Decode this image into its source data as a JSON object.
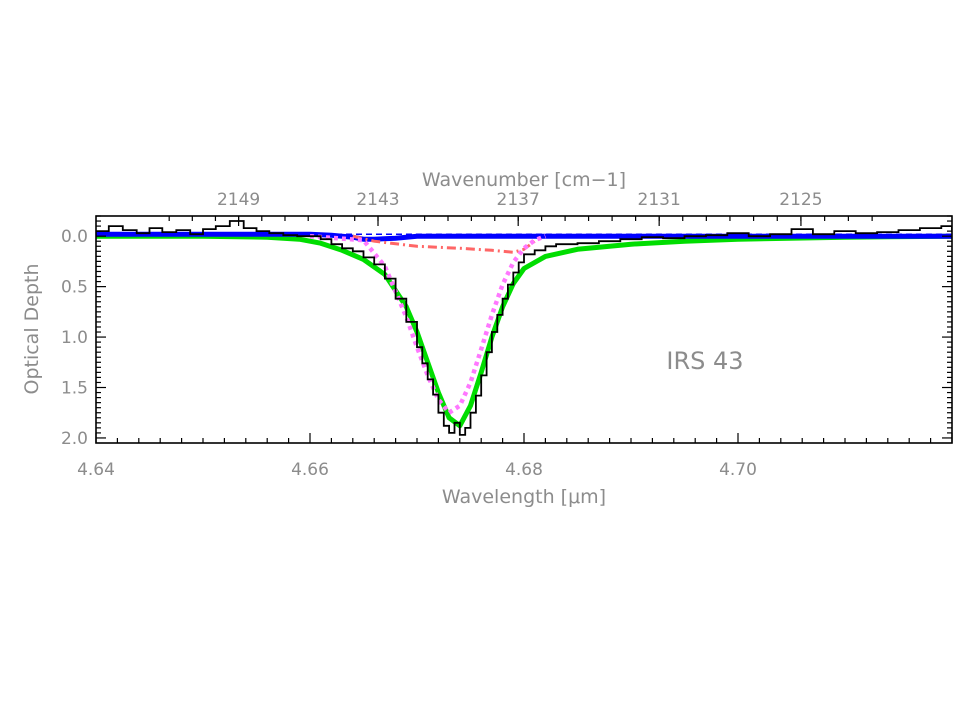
{
  "chart_data": {
    "type": "line",
    "annotation": "IRS 43",
    "xlabel": "Wavelength [μm]",
    "ylabel": "Optical Depth",
    "top_xlabel": "Wavenumber [cm−1]",
    "xlim": [
      4.64,
      4.72
    ],
    "ylim": [
      2.05,
      -0.2
    ],
    "y_inverted": true,
    "grid": false,
    "x_ticks": [
      "4.64",
      "4.66",
      "4.68",
      "4.70"
    ],
    "y_ticks": [
      "0.0",
      "0.5",
      "1.0",
      "1.5",
      "2.0"
    ],
    "top_ticks": [
      "2149",
      "2143",
      "2137",
      "2131",
      "2125"
    ],
    "top_tick_values": [
      2149,
      2143,
      2137,
      2131,
      2125
    ],
    "colors": {
      "observed": "#000000",
      "total_fit": "#00dd00",
      "component_a": "#ff77ff",
      "component_b": "#ff6666",
      "component_c": "#0000ff"
    },
    "series": [
      {
        "key": "observed",
        "style": "step",
        "x": [
          4.64,
          4.6412,
          4.6425,
          4.6438,
          4.645,
          4.6462,
          4.6475,
          4.6488,
          4.65,
          4.6512,
          4.6525,
          4.6538,
          4.655,
          4.6562,
          4.6575,
          4.6588,
          4.66,
          4.661,
          4.662,
          4.663,
          4.664,
          4.665,
          4.666,
          4.667,
          4.668,
          4.669,
          4.67,
          4.6705,
          4.671,
          4.6715,
          4.672,
          4.6725,
          4.673,
          4.6735,
          4.674,
          4.6745,
          4.675,
          4.6755,
          4.676,
          4.6765,
          4.677,
          4.6775,
          4.678,
          4.6785,
          4.679,
          4.6795,
          4.68,
          4.681,
          4.682,
          4.683,
          4.685,
          4.687,
          4.689,
          4.691,
          4.693,
          4.695,
          4.697,
          4.699,
          4.701,
          4.703,
          4.705,
          4.707,
          4.709,
          4.711,
          4.713,
          4.715,
          4.717,
          4.719,
          4.72
        ],
        "y": [
          -0.05,
          -0.1,
          -0.06,
          -0.03,
          -0.08,
          -0.04,
          -0.06,
          -0.02,
          -0.07,
          -0.1,
          -0.15,
          -0.08,
          -0.05,
          -0.03,
          -0.01,
          0.0,
          0.0,
          0.03,
          0.08,
          0.12,
          0.15,
          0.21,
          0.28,
          0.42,
          0.62,
          0.85,
          1.1,
          1.26,
          1.42,
          1.57,
          1.75,
          1.88,
          1.95,
          1.85,
          1.97,
          1.9,
          1.75,
          1.58,
          1.38,
          1.15,
          0.95,
          0.78,
          0.62,
          0.48,
          0.36,
          0.26,
          0.18,
          0.14,
          0.1,
          0.08,
          0.07,
          0.05,
          0.03,
          0.01,
          0.02,
          0.0,
          -0.01,
          -0.03,
          0.0,
          -0.02,
          -0.07,
          -0.02,
          -0.05,
          -0.03,
          -0.04,
          -0.06,
          -0.08,
          -0.1,
          -0.04
        ]
      },
      {
        "key": "total_fit",
        "style": "solid",
        "x": [
          4.64,
          4.65,
          4.656,
          4.659,
          4.661,
          4.663,
          4.665,
          4.667,
          4.669,
          4.67,
          4.671,
          4.672,
          4.673,
          4.674,
          4.675,
          4.676,
          4.677,
          4.678,
          4.679,
          4.68,
          4.682,
          4.685,
          4.69,
          4.695,
          4.7,
          4.71,
          4.72
        ],
        "y": [
          0.0,
          0.0,
          0.01,
          0.03,
          0.07,
          0.14,
          0.23,
          0.38,
          0.7,
          0.95,
          1.25,
          1.55,
          1.8,
          1.88,
          1.68,
          1.35,
          1.0,
          0.7,
          0.47,
          0.32,
          0.2,
          0.13,
          0.08,
          0.05,
          0.03,
          0.01,
          0.0
        ]
      },
      {
        "key": "component_a",
        "style": "dotted",
        "x": [
          4.66,
          4.665,
          4.667,
          4.669,
          4.67,
          4.671,
          4.672,
          4.673,
          4.674,
          4.675,
          4.676,
          4.677,
          4.678,
          4.679,
          4.68,
          4.681,
          4.682
        ],
        "y": [
          0.0,
          0.04,
          0.3,
          0.8,
          1.1,
          1.38,
          1.62,
          1.75,
          1.68,
          1.45,
          1.12,
          0.78,
          0.48,
          0.26,
          0.12,
          0.04,
          0.0
        ]
      },
      {
        "key": "component_b",
        "style": "dashdot",
        "x": [
          4.664,
          4.666,
          4.67,
          4.674,
          4.677,
          4.679,
          4.68,
          4.681
        ],
        "y": [
          0.0,
          0.05,
          0.1,
          0.12,
          0.14,
          0.16,
          0.13,
          0.05
        ]
      },
      {
        "key": "component_c",
        "style": "solid_dashed",
        "x": [
          4.64,
          4.66,
          4.662,
          4.664,
          4.665,
          4.666,
          4.668,
          4.67,
          4.72
        ],
        "y": [
          -0.02,
          -0.02,
          -0.01,
          0.01,
          0.03,
          0.03,
          0.02,
          0.0,
          0.0
        ]
      }
    ]
  }
}
